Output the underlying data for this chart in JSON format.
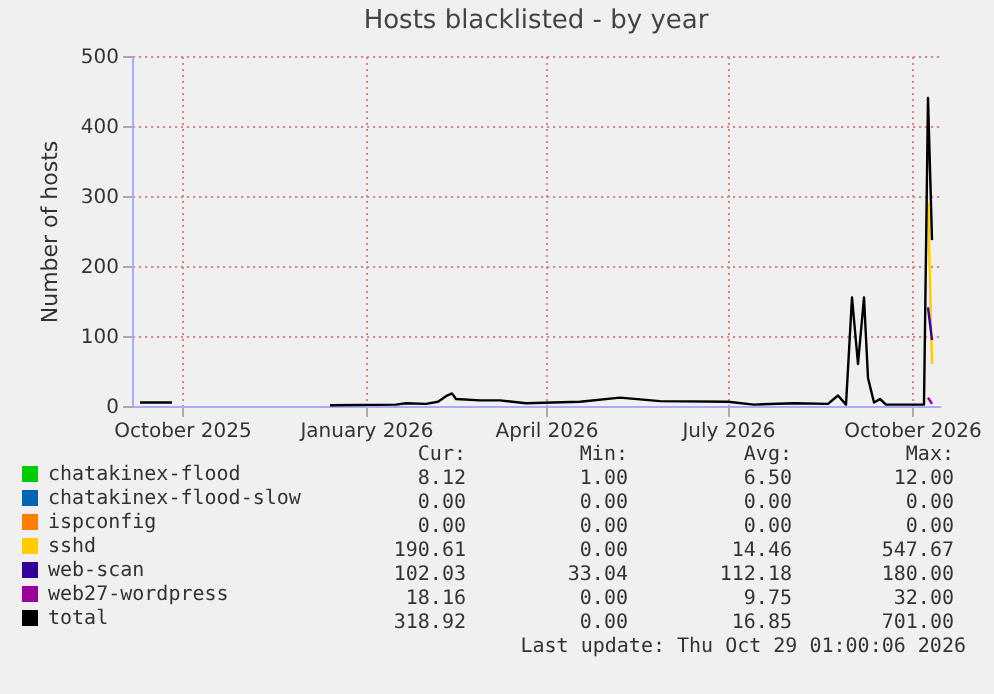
{
  "chart_data": {
    "type": "line",
    "title": "Hosts blacklisted - by year",
    "ylabel": "Number of hosts",
    "xlim": [
      "2025-09-06",
      "2026-10-15"
    ],
    "xticks": [
      {
        "value": "2025-10-01",
        "label": "October 2025"
      },
      {
        "value": "2026-01-01",
        "label": "January 2026"
      },
      {
        "value": "2026-04-01",
        "label": "April 2026"
      },
      {
        "value": "2026-07-01",
        "label": "July 2026"
      },
      {
        "value": "2026-10-01",
        "label": "October 2026"
      }
    ],
    "ylim": [
      0,
      500
    ],
    "yticks": [
      0,
      100,
      200,
      300,
      400,
      500
    ],
    "grid": true,
    "legend": "bottom",
    "series": [
      {
        "name": "chatakinex-flood",
        "color": "#00cc00"
      },
      {
        "name": "chatakinex-flood-slow",
        "color": "#0066b3"
      },
      {
        "name": "ispconfig",
        "color": "#ff8000"
      },
      {
        "name": "sshd",
        "color": "#ffcc00",
        "x": [
          "2026-10-09",
          "2026-10-11"
        ],
        "values": [
          290,
          60
        ]
      },
      {
        "name": "web-scan",
        "color": "#330099",
        "x": [
          "2026-10-09",
          "2026-10-11"
        ],
        "values": [
          141,
          94
        ]
      },
      {
        "name": "web27-wordpress",
        "color": "#990099",
        "x": [
          "2026-10-09",
          "2026-10-11"
        ],
        "values": [
          12,
          3
        ]
      },
      {
        "name": "total",
        "color": "#000000",
        "x": [
          "2025-09-10",
          "2025-09-26",
          "2025-11-01",
          "2025-12-14",
          "2026-01-16",
          "2026-01-21",
          "2026-01-31",
          "2026-02-06",
          "2026-02-10",
          "2026-02-13",
          "2026-02-15",
          "2026-02-27",
          "2026-03-09",
          "2026-03-22",
          "2026-04-18",
          "2026-05-08",
          "2026-05-28",
          "2026-07-01",
          "2026-07-14",
          "2026-08-03",
          "2026-08-20",
          "2026-08-25",
          "2026-08-29",
          "2026-09-01",
          "2026-09-04",
          "2026-09-07",
          "2026-09-09",
          "2026-09-12",
          "2026-09-15",
          "2026-09-18",
          "2026-10-07",
          "2026-10-09",
          "2026-10-11"
        ],
        "values": [
          5,
          5,
          null,
          1,
          2,
          4,
          3,
          6,
          14,
          18,
          10,
          8,
          8,
          4,
          6,
          12,
          7,
          6,
          2,
          4,
          3,
          15,
          2,
          155,
          60,
          155,
          40,
          5,
          10,
          2,
          2,
          440,
          237
        ]
      }
    ],
    "annotations": [
      "Cur:",
      "Min:",
      "Avg:",
      "Max:",
      "8.12",
      "1.00",
      "6.50",
      "12.00",
      "0.00",
      "0.00",
      "0.00",
      "0.00",
      "0.00",
      "0.00",
      "0.00",
      "0.00",
      "190.61",
      "0.00",
      "14.46",
      "547.67",
      "102.03",
      "33.04",
      "112.18",
      "180.00",
      "18.16",
      "0.00",
      "9.75",
      "32.00",
      "318.92",
      "0.00",
      "16.85",
      "701.00",
      "Last update: Thu Oct 29 01:00:06 2026"
    ]
  }
}
